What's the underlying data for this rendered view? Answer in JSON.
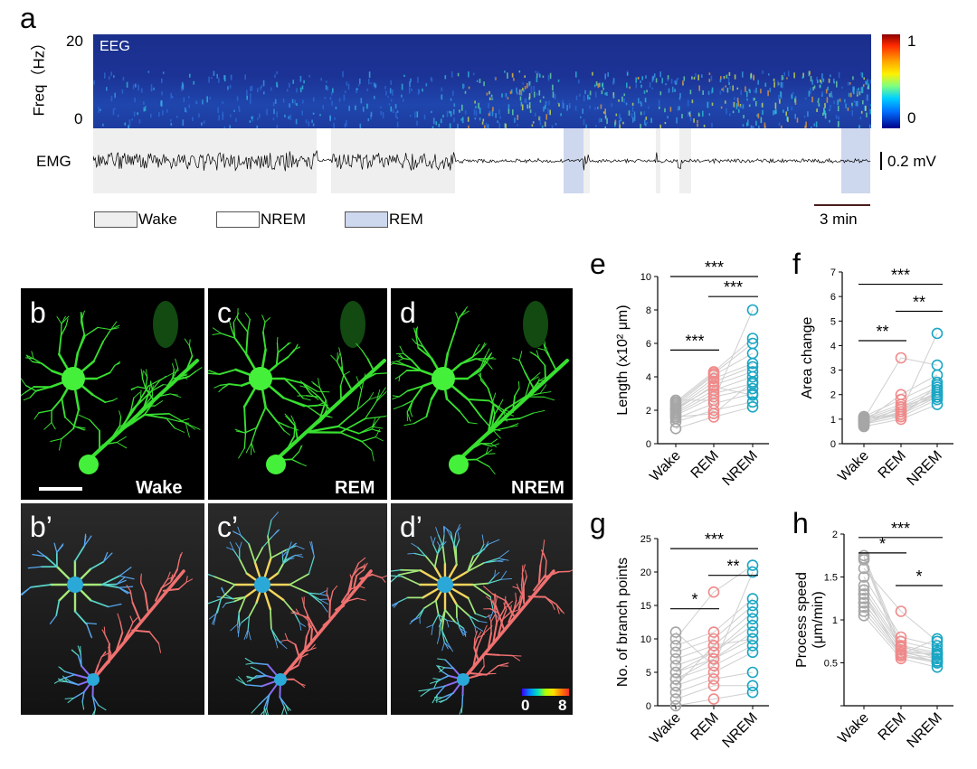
{
  "panel_a": {
    "label": "a",
    "eeg_label": "EEG",
    "freq_axis_label": "Freq（Hz）",
    "freq_ticks": [
      "20",
      "0"
    ],
    "colorbar_ticks": [
      "1",
      "0"
    ],
    "emg_label": "EMG",
    "emg_scale": "0.2 mV",
    "time_scale": "3 min",
    "legend": [
      "Wake",
      "NREM",
      "REM"
    ],
    "state_colors": {
      "Wake": "#efefef",
      "NREM": "#ffffff",
      "REM": "#cdd7ee"
    }
  },
  "images": {
    "micrographs": [
      {
        "label": "b",
        "state": "Wake"
      },
      {
        "label": "c",
        "state": "REM"
      },
      {
        "label": "d",
        "state": "NREM"
      }
    ],
    "reconstructions": [
      {
        "label": "b’"
      },
      {
        "label": "c’"
      },
      {
        "label": "d’"
      }
    ],
    "colorbar_ticks": [
      "0",
      "8"
    ]
  },
  "chart_data": [
    {
      "label": "e",
      "type": "scatter",
      "categories": [
        "Wake",
        "REM",
        "NREM"
      ],
      "ylabel": "Length (x10² μm)",
      "ylim": [
        0,
        10
      ],
      "yticks": [
        0,
        2,
        4,
        6,
        8,
        10
      ],
      "series": [
        {
          "color": "#a6a6a6",
          "values": [
            0.9,
            1.3,
            1.5,
            1.7,
            1.8,
            1.9,
            2.0,
            2.1,
            2.2,
            2.3,
            2.4,
            2.5,
            2.6,
            2.1,
            1.6
          ]
        },
        {
          "color": "#f08a8a",
          "values": [
            1.6,
            2.0,
            2.4,
            2.8,
            3.0,
            3.2,
            3.5,
            3.7,
            3.9,
            4.1,
            4.2,
            4.3,
            2.6,
            3.4,
            1.8
          ]
        },
        {
          "color": "#1aa6c4",
          "values": [
            2.2,
            2.5,
            3.0,
            3.3,
            3.6,
            4.0,
            4.3,
            4.6,
            4.8,
            5.4,
            6.0,
            6.3,
            8.0,
            2.9,
            3.7
          ]
        }
      ],
      "significance": [
        {
          "from": 0,
          "to": 1,
          "text": "***",
          "y": 5.6
        },
        {
          "from": 1,
          "to": 2,
          "text": "***",
          "y": 8.8
        },
        {
          "from": 0,
          "to": 2,
          "text": "***",
          "y": 10.0
        }
      ]
    },
    {
      "label": "f",
      "type": "scatter",
      "categories": [
        "Wake",
        "REM",
        "NREM"
      ],
      "ylabel": "Area change",
      "ylim": [
        0,
        7
      ],
      "yticks": [
        0,
        1,
        2,
        3,
        4,
        5,
        6,
        7
      ],
      "series": [
        {
          "color": "#a6a6a6",
          "values": [
            0.7,
            0.8,
            0.85,
            0.9,
            0.95,
            1.0,
            1.05,
            1.1,
            0.9,
            1.0,
            0.8,
            1.0,
            0.95,
            1.1,
            0.75
          ]
        },
        {
          "color": "#f08a8a",
          "values": [
            1.0,
            1.1,
            1.2,
            1.3,
            1.4,
            1.5,
            1.6,
            1.8,
            2.0,
            3.5,
            1.3,
            1.2,
            1.4,
            1.1,
            1.5
          ]
        },
        {
          "color": "#1aa6c4",
          "values": [
            1.6,
            1.8,
            1.9,
            2.0,
            2.1,
            2.2,
            2.3,
            2.5,
            2.8,
            3.2,
            4.5,
            2.1,
            1.9,
            2.4,
            2.0
          ]
        }
      ],
      "significance": [
        {
          "from": 0,
          "to": 1,
          "text": "**",
          "y": 4.2
        },
        {
          "from": 1,
          "to": 2,
          "text": "**",
          "y": 5.4
        },
        {
          "from": 0,
          "to": 2,
          "text": "***",
          "y": 6.5
        }
      ]
    },
    {
      "label": "g",
      "type": "scatter",
      "categories": [
        "Wake",
        "REM",
        "NREM"
      ],
      "ylabel": "No. of branch points",
      "ylim": [
        0,
        25
      ],
      "yticks": [
        0,
        5,
        10,
        15,
        20,
        25
      ],
      "series": [
        {
          "color": "#a6a6a6",
          "values": [
            0,
            1,
            2,
            3,
            4,
            4,
            5,
            5,
            6,
            7,
            8,
            9,
            10,
            11,
            3
          ]
        },
        {
          "color": "#f08a8a",
          "values": [
            1,
            3,
            4,
            5,
            6,
            7,
            7,
            8,
            8,
            9,
            10,
            11,
            17,
            6,
            9
          ]
        },
        {
          "color": "#1aa6c4",
          "values": [
            2,
            3,
            5,
            8,
            9,
            10,
            11,
            12,
            13,
            14,
            15,
            16,
            21,
            20,
            10
          ]
        }
      ],
      "significance": [
        {
          "from": 0,
          "to": 1,
          "text": "*",
          "y": 14.5
        },
        {
          "from": 1,
          "to": 2,
          "text": "**",
          "y": 19.5
        },
        {
          "from": 0,
          "to": 2,
          "text": "***",
          "y": 23.5
        }
      ]
    },
    {
      "label": "h",
      "type": "scatter",
      "categories": [
        "Wake",
        "REM",
        "NREM"
      ],
      "ylabel": "Process speed (μm/min)",
      "ylim": [
        0,
        2
      ],
      "yticks": [
        0,
        0.5,
        1,
        1.5,
        2
      ],
      "ytick_labels": [
        "",
        "0.5",
        "1",
        "1.5",
        "2"
      ],
      "series": [
        {
          "color": "#a6a6a6",
          "values": [
            1.05,
            1.1,
            1.15,
            1.2,
            1.25,
            1.3,
            1.35,
            1.4,
            1.5,
            1.6,
            1.7,
            1.72,
            1.75,
            1.2,
            1.3
          ]
        },
        {
          "color": "#f08a8a",
          "values": [
            0.55,
            0.58,
            0.6,
            0.62,
            0.65,
            0.68,
            0.7,
            0.75,
            0.8,
            1.1,
            0.6,
            0.65,
            0.7,
            0.62,
            0.58
          ]
        },
        {
          "color": "#1aa6c4",
          "values": [
            0.45,
            0.5,
            0.52,
            0.55,
            0.58,
            0.6,
            0.62,
            0.65,
            0.7,
            0.75,
            0.78,
            0.5,
            0.55,
            0.6,
            0.52
          ]
        }
      ],
      "significance": [
        {
          "from": 0,
          "to": 1,
          "text": "*",
          "y": 1.78
        },
        {
          "from": 1,
          "to": 2,
          "text": "*",
          "y": 1.4
        },
        {
          "from": 0,
          "to": 2,
          "text": "***",
          "y": 1.96
        }
      ]
    }
  ]
}
